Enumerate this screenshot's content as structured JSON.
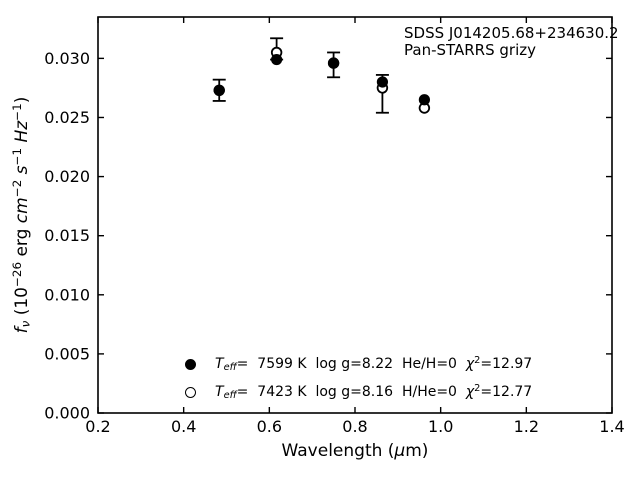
{
  "figure": {
    "background": "#ffffff",
    "annotation": {
      "line1": "SDSS J014205.68+234630.2",
      "line2": "Pan-STARRS grizy"
    },
    "legend": {
      "rows": [
        {
          "marker": "filled-circle",
          "parts": [
            {
              "t": "T",
              "s": "i"
            },
            {
              "t": "eff",
              "s": "isub"
            },
            {
              "t": "=  7599 K  log g=8.22  He/H=0  "
            },
            {
              "t": "χ",
              "s": "i"
            },
            {
              "t": "2",
              "s": "sup"
            },
            {
              "t": "=12.97"
            }
          ]
        },
        {
          "marker": "open-circle",
          "parts": [
            {
              "t": "T",
              "s": "i"
            },
            {
              "t": "eff",
              "s": "isub"
            },
            {
              "t": "=  7423 K  log g=8.16  H/He=0  "
            },
            {
              "t": "χ",
              "s": "i"
            },
            {
              "t": "2",
              "s": "sup"
            },
            {
              "t": "=12.77"
            }
          ]
        }
      ]
    }
  },
  "chart_data": {
    "type": "scatter",
    "title": "",
    "xlabel_parts": [
      {
        "t": "Wavelength ("
      },
      {
        "t": "μ",
        "s": "i"
      },
      {
        "t": "m)"
      }
    ],
    "ylabel_parts": [
      {
        "t": "f",
        "s": "i"
      },
      {
        "t": "ν",
        "s": "isub"
      },
      {
        "t": " (10"
      },
      {
        "t": "−26",
        "s": "sup"
      },
      {
        "t": " erg "
      },
      {
        "t": "cm",
        "s": "i"
      },
      {
        "t": "−2",
        "s": "sup"
      },
      {
        "t": " "
      },
      {
        "t": "s",
        "s": "i"
      },
      {
        "t": "−1",
        "s": "sup"
      },
      {
        "t": " "
      },
      {
        "t": "Hz",
        "s": "i"
      },
      {
        "t": "−1",
        "s": "sup"
      },
      {
        "t": ")"
      }
    ],
    "xlim": [
      0.2,
      1.4
    ],
    "ylim": [
      0,
      0.0335
    ],
    "xtick_values": [
      0.2,
      0.4,
      0.6,
      0.8,
      1.0,
      1.2,
      1.4
    ],
    "xtick_labels": [
      "0.2",
      "0.4",
      "0.6",
      "0.8",
      "1.0",
      "1.2",
      "1.4"
    ],
    "ytick_values": [
      0,
      0.005,
      0.01,
      0.015,
      0.02,
      0.025,
      0.03
    ],
    "ytick_labels": [
      "0.000",
      "0.005",
      "0.010",
      "0.015",
      "0.020",
      "0.025",
      "0.030"
    ],
    "grid": false,
    "tick_direction": "in",
    "legend_position": "lower center inside",
    "bands": [
      "g",
      "r",
      "i",
      "z",
      "y"
    ],
    "x": [
      0.483,
      0.617,
      0.75,
      0.864,
      0.962
    ],
    "series": [
      {
        "name": "Teff=7599 K, log g=8.22, He/H=0 model",
        "marker": "filled-circle",
        "values": [
          0.0273,
          0.0299,
          0.0296,
          0.028,
          0.0265
        ]
      },
      {
        "name": "Teff=7423 K, log g=8.16, H/He=0 model",
        "marker": "open-circle",
        "values": [
          0.0273,
          0.0305,
          0.0296,
          0.0275,
          0.0258
        ]
      }
    ],
    "error_bars": [
      {
        "x": 0.483,
        "low": 0.0264,
        "high": 0.0282
      },
      {
        "x": 0.617,
        "low": 0.0299,
        "high": 0.0317
      },
      {
        "x": 0.75,
        "low": 0.0284,
        "high": 0.0305
      },
      {
        "x": 0.864,
        "low": 0.0254,
        "high": 0.0286
      },
      {
        "x": 0.962,
        "low": null,
        "high": null
      }
    ],
    "colors": {
      "foreground": "#000000",
      "background": "#ffffff"
    }
  }
}
